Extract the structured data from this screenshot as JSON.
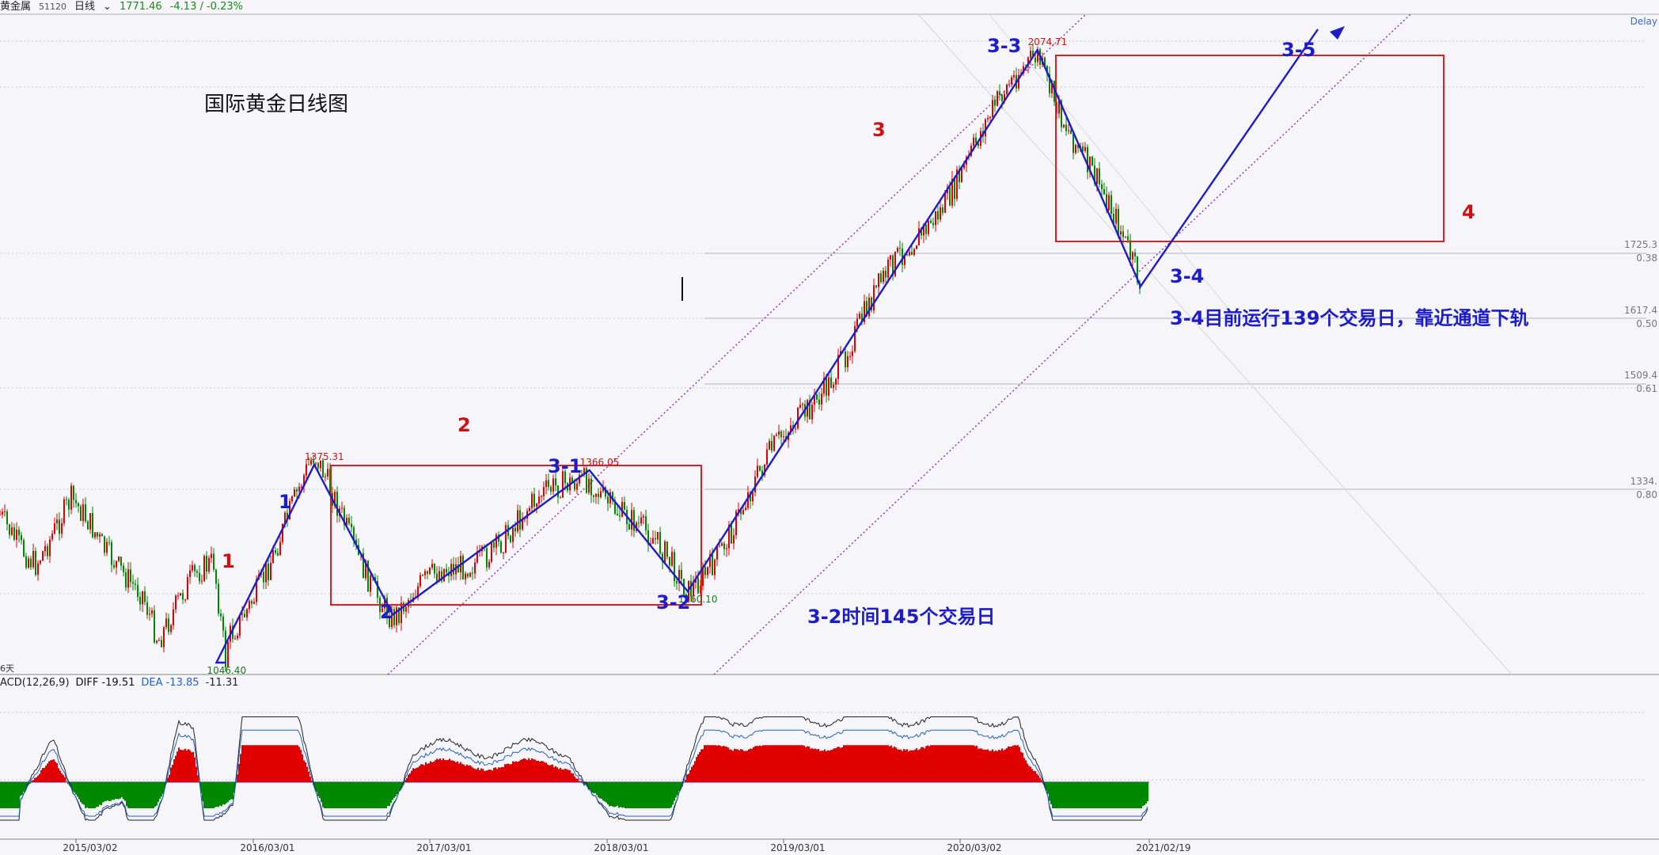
{
  "header": {
    "instrument": "黄金属",
    "code": "51120",
    "period": "日线",
    "last": "1771.46",
    "change": "-4.13 / -0.23%",
    "delay_label": "Delay"
  },
  "macd": {
    "label": "ACD(12,26,9)",
    "diff": "DIFF -19.51",
    "dea": "DEA -13.85",
    "macd_value": "-11.31"
  },
  "axis": {
    "left_fragment": "6天",
    "dates": [
      "2015/03/02",
      "2016/03/01",
      "2017/03/01",
      "2018/03/01",
      "2019/03/01",
      "2020/03/02",
      "2021/02/19"
    ],
    "right_labels": [
      "1725.3",
      "0.38",
      "1617.4",
      "0.50",
      "1509.4",
      "0.61",
      "1334.",
      "0.80"
    ]
  },
  "annotations": {
    "title": "国际黄金日线图",
    "wave_red": [
      "1",
      "2",
      "3",
      "4"
    ],
    "wave_blue": [
      "1",
      "2",
      "3-1",
      "3-2",
      "3-3",
      "3-4",
      "3-5"
    ],
    "note_32": "3-2时间145个交易日",
    "note_34": "3-4目前运行139个交易日，靠近通道下轨"
  },
  "colors": {
    "up": "#e00000",
    "down": "#008800",
    "wave_line": "#1c1ccc",
    "box": "#e02020",
    "channel": "#9933cc"
  },
  "chart_data": {
    "type": "line",
    "title": "国际黄金日线图",
    "series": [
      {
        "name": "",
        "points": [
          {
            "date": "2015/12/17",
            "value": 1046.4,
            "label": "1046.40"
          },
          {
            "date": "2016/07/06",
            "value": 1375.31,
            "label": "1375.31"
          },
          {
            "date": "2016/12/15",
            "value": 1123.0,
            "label": ""
          },
          {
            "date": "2018/01/25",
            "value": 1366.05,
            "label": "1366.05"
          },
          {
            "date": "2018/08/16",
            "value": 1160.1,
            "label": "1160.10"
          },
          {
            "date": "2020/08/07",
            "value": 2074.71,
            "label": "2074.71"
          },
          {
            "date": "2021/03/08",
            "value": 1676.0,
            "label": ""
          }
        ]
      }
    ],
    "ylim": [
      1000,
      2150
    ],
    "fib_levels": [
      {
        "price": "1725.3",
        "ratio": "0.38"
      },
      {
        "price": "1617.4",
        "ratio": "0.50"
      },
      {
        "price": "1509.4",
        "ratio": "0.61"
      },
      {
        "price": "1334.",
        "ratio": "0.80"
      }
    ],
    "macd_indicator": {
      "diff": -19.51,
      "dea": -13.85,
      "macd": -11.31
    }
  }
}
